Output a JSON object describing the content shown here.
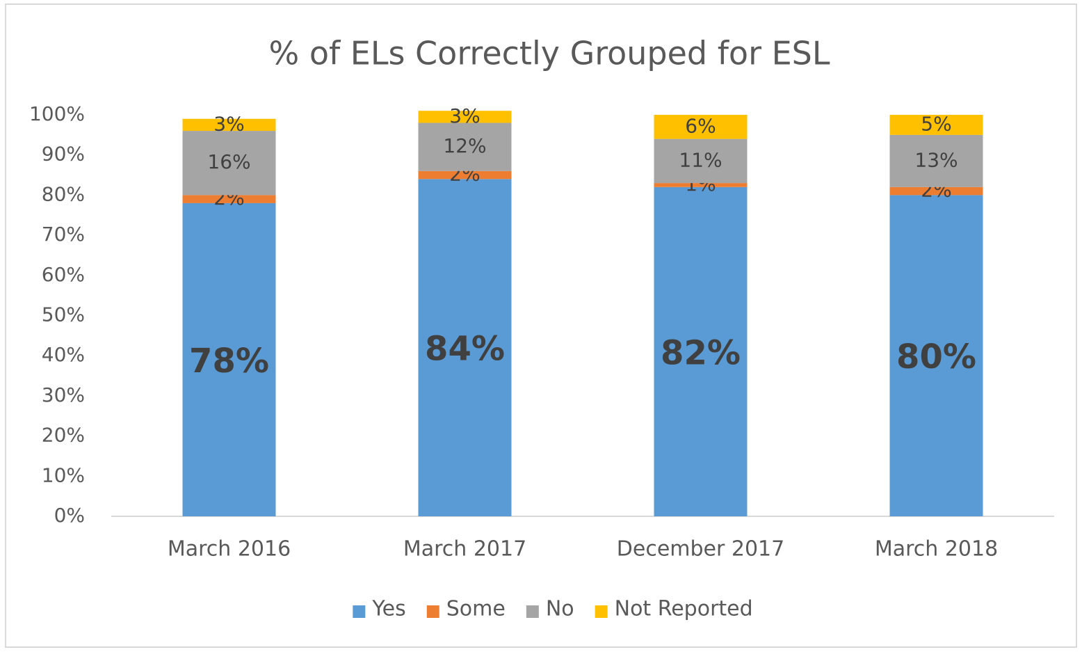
{
  "chart_data": {
    "type": "stacked_bar",
    "title": "% of ELs Correctly Grouped for ESL",
    "categories": [
      "March 2016",
      "March 2017",
      "December 2017",
      "March 2018"
    ],
    "series": [
      {
        "name": "Yes",
        "color": "#5b9bd5",
        "values": [
          78,
          84,
          82,
          80
        ],
        "value_labels": [
          "78%",
          "84%",
          "82%",
          "80%"
        ]
      },
      {
        "name": "Some",
        "color": "#ed7d31",
        "values": [
          2,
          2,
          1,
          2
        ],
        "value_labels": [
          "2%",
          "2%",
          "1%",
          "2%"
        ]
      },
      {
        "name": "No",
        "color": "#a5a5a5",
        "values": [
          16,
          12,
          11,
          13
        ],
        "value_labels": [
          "16%",
          "12%",
          "11%",
          "13%"
        ]
      },
      {
        "name": "Not Reported",
        "color": "#ffc000",
        "values": [
          3,
          3,
          6,
          5
        ],
        "value_labels": [
          "3%",
          "3%",
          "6%",
          "5%"
        ]
      }
    ],
    "ylim": [
      0,
      100
    ],
    "yticks": [
      {
        "value": 0,
        "label": "0%"
      },
      {
        "value": 10,
        "label": "10%"
      },
      {
        "value": 20,
        "label": "20%"
      },
      {
        "value": 30,
        "label": "30%"
      },
      {
        "value": 40,
        "label": "40%"
      },
      {
        "value": 50,
        "label": "50%"
      },
      {
        "value": 60,
        "label": "60%"
      },
      {
        "value": 70,
        "label": "70%"
      },
      {
        "value": 80,
        "label": "80%"
      },
      {
        "value": 90,
        "label": "90%"
      },
      {
        "value": 100,
        "label": "100%"
      }
    ],
    "legend": "bottom",
    "grid": false
  }
}
